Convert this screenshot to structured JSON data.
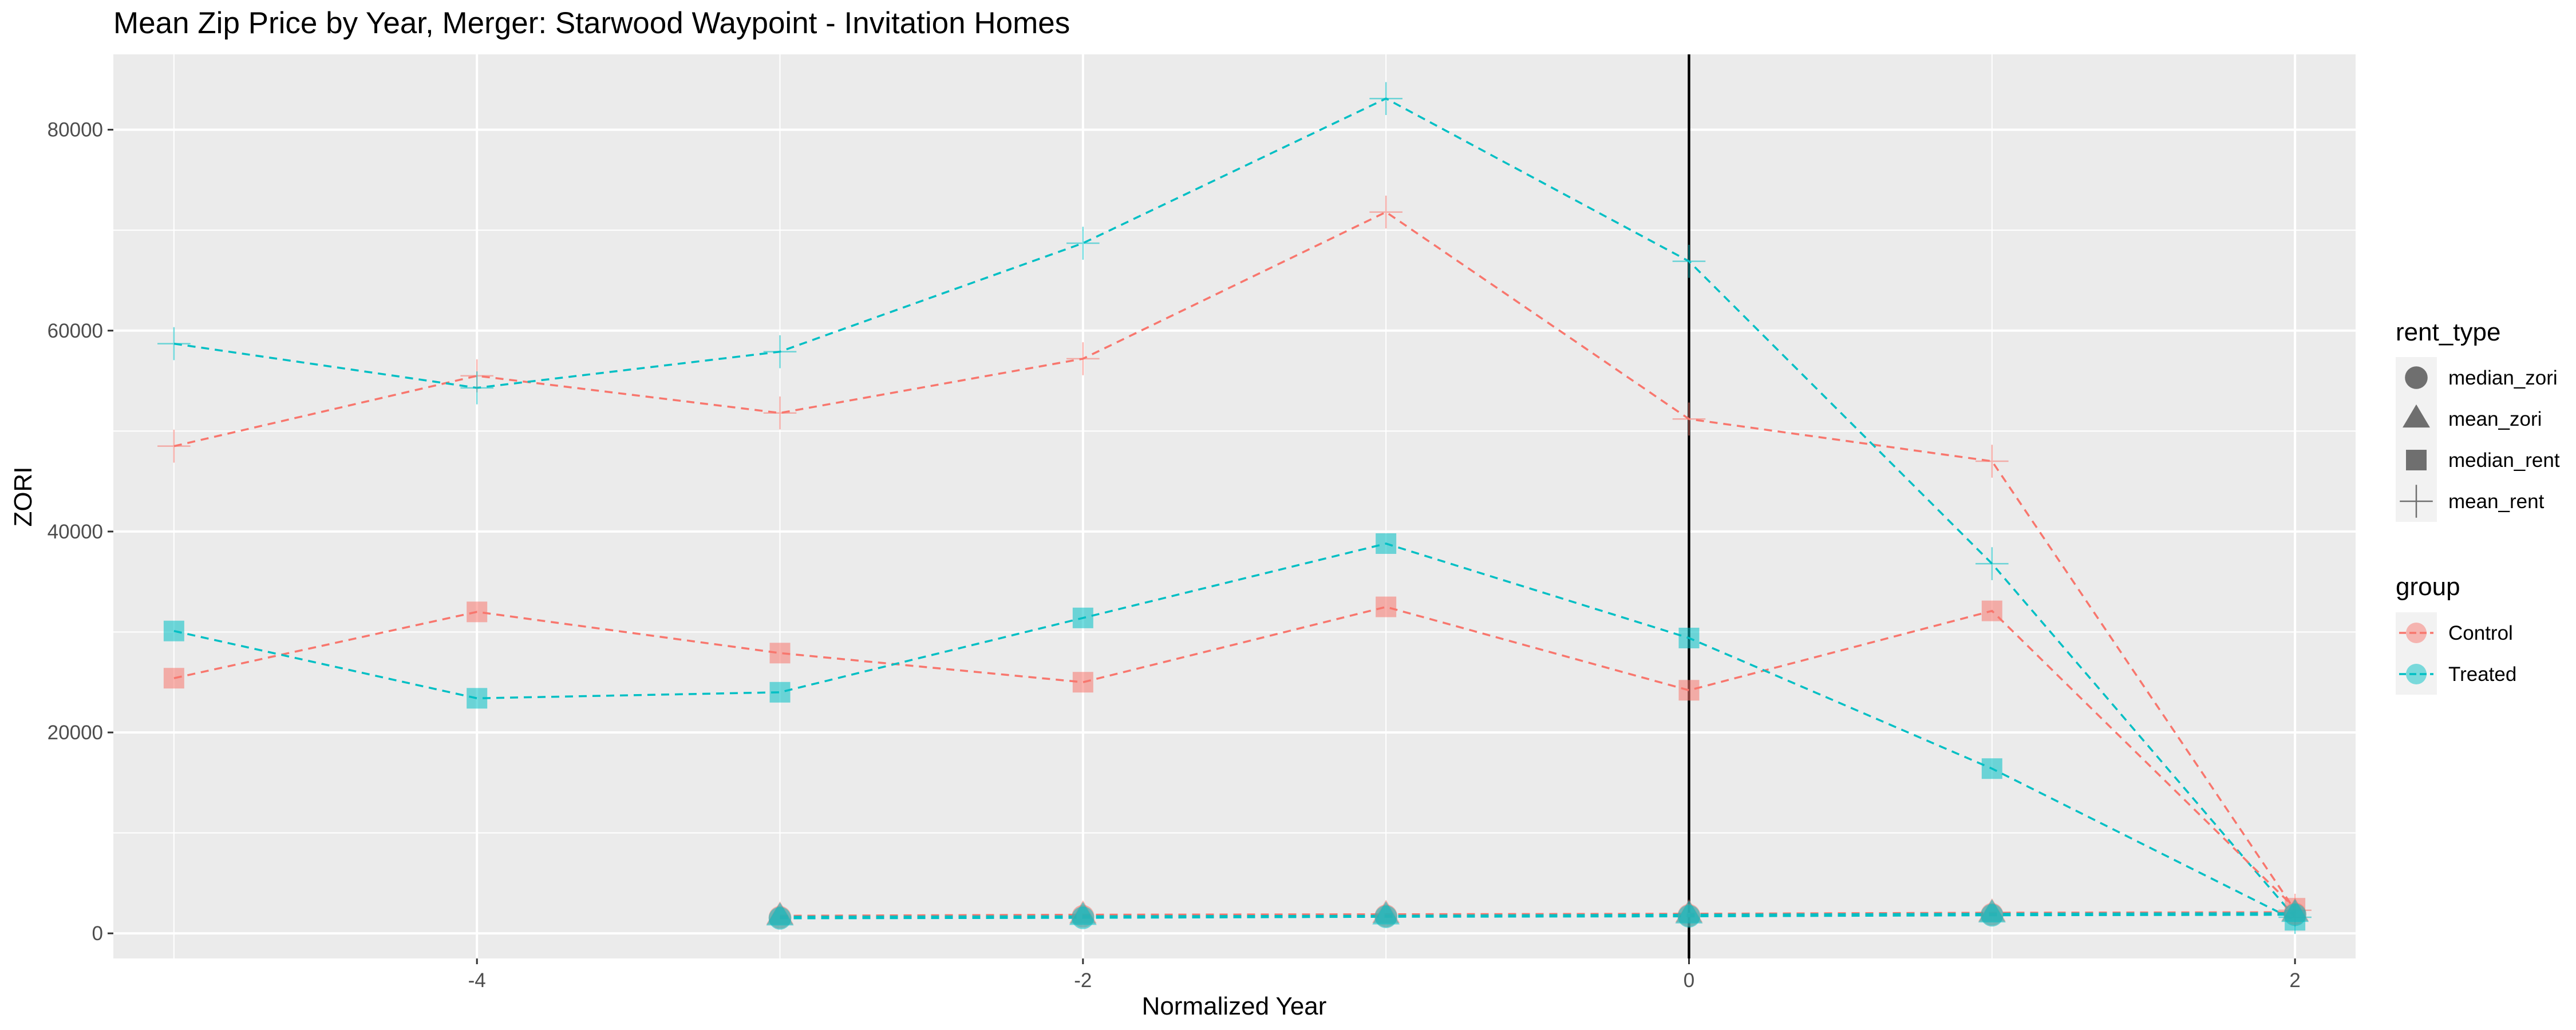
{
  "chart_data": {
    "type": "line",
    "title": "Mean Zip Price by Year, Merger: Starwood Waypoint - Invitation Homes",
    "xlabel": "Normalized Year",
    "ylabel": "ZORI",
    "xlim": [
      -5.2,
      2.2
    ],
    "ylim": [
      -2500,
      87500
    ],
    "x_ticks": [
      -4,
      -2,
      0,
      2
    ],
    "x_tick_labels": [
      "-4",
      "-2",
      "0",
      "2"
    ],
    "y_ticks": [
      0,
      20000,
      40000,
      60000,
      80000
    ],
    "y_tick_labels": [
      "0",
      "20000",
      "40000",
      "60000",
      "80000"
    ],
    "vline_x": 0,
    "grid": true,
    "legend_position": "right",
    "legends": [
      {
        "title": "rent_type",
        "entries": [
          {
            "label": "median_zori",
            "shape": "circle"
          },
          {
            "label": "mean_zori",
            "shape": "triangle"
          },
          {
            "label": "median_rent",
            "shape": "square"
          },
          {
            "label": "mean_rent",
            "shape": "plus"
          }
        ]
      },
      {
        "title": "group",
        "entries": [
          {
            "label": "Control",
            "color": "#F8766D"
          },
          {
            "label": "Treated",
            "color": "#00BFC4"
          }
        ]
      }
    ],
    "series": [
      {
        "group": "Control",
        "rent_type": "mean_rent",
        "color": "#F8766D",
        "shape": "plus",
        "x": [
          -5,
          -4,
          -3,
          -2,
          -1,
          0,
          1,
          2
        ],
        "y": [
          48500,
          55500,
          51800,
          57200,
          71800,
          51200,
          47000,
          2300
        ]
      },
      {
        "group": "Treated",
        "rent_type": "mean_rent",
        "color": "#00BFC4",
        "shape": "plus",
        "x": [
          -5,
          -4,
          -3,
          -2,
          -1,
          0,
          1,
          2
        ],
        "y": [
          58700,
          54300,
          57900,
          68700,
          83100,
          66900,
          36800,
          1600
        ]
      },
      {
        "group": "Control",
        "rent_type": "median_rent",
        "color": "#F8766D",
        "shape": "square",
        "x": [
          -5,
          -4,
          -3,
          -2,
          -1,
          0,
          1,
          2
        ],
        "y": [
          25400,
          32000,
          27900,
          25000,
          32500,
          24200,
          32100,
          2500
        ]
      },
      {
        "group": "Treated",
        "rent_type": "median_rent",
        "color": "#00BFC4",
        "shape": "square",
        "x": [
          -5,
          -4,
          -3,
          -2,
          -1,
          0,
          1,
          2
        ],
        "y": [
          30100,
          23400,
          24000,
          31400,
          38800,
          29400,
          16400,
          1300
        ]
      },
      {
        "group": "Control",
        "rent_type": "median_zori",
        "color": "#F8766D",
        "shape": "circle",
        "x": [
          -3,
          -2,
          -1,
          0,
          1,
          2
        ],
        "y": [
          1600,
          1700,
          1750,
          1800,
          1900,
          1950
        ]
      },
      {
        "group": "Control",
        "rent_type": "mean_zori",
        "color": "#F8766D",
        "shape": "triangle",
        "x": [
          -3,
          -2,
          -1,
          0,
          1,
          2
        ],
        "y": [
          1750,
          1850,
          1900,
          1950,
          2050,
          2100
        ]
      },
      {
        "group": "Treated",
        "rent_type": "median_zori",
        "color": "#00BFC4",
        "shape": "circle",
        "x": [
          -3,
          -2,
          -1,
          0,
          1,
          2
        ],
        "y": [
          1500,
          1550,
          1650,
          1700,
          1800,
          1850
        ]
      },
      {
        "group": "Treated",
        "rent_type": "mean_zori",
        "color": "#00BFC4",
        "shape": "triangle",
        "x": [
          -3,
          -2,
          -1,
          0,
          1,
          2
        ],
        "y": [
          1650,
          1700,
          1750,
          1850,
          1950,
          2000
        ]
      }
    ]
  }
}
